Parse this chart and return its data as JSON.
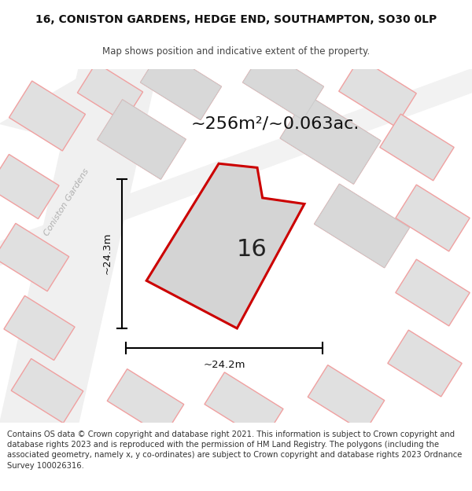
{
  "title": "16, CONISTON GARDENS, HEDGE END, SOUTHAMPTON, SO30 0LP",
  "subtitle": "Map shows position and indicative extent of the property.",
  "area_text": "~256m²/~0.063ac.",
  "width_text": "~24.2m",
  "height_text": "~24.3m",
  "label_16": "16",
  "street_label": "Coniston Gardens",
  "copyright_text": "Contains OS data © Crown copyright and database right 2021. This information is subject to Crown copyright and database rights 2023 and is reproduced with the permission of HM Land Registry. The polygons (including the associated geometry, namely x, y co-ordinates) are subject to Crown copyright and database rights 2023 Ordnance Survey 100026316.",
  "map_bg": "#ebebeb",
  "plot_fill": "#d4d4d4",
  "plot_edge": "#cc0000",
  "neighbor_fill": "#e0e0e0",
  "neighbor_edge": "#f0a0a0",
  "road_fill": "#f8f8f8",
  "title_fontsize": 10,
  "subtitle_fontsize": 8.5,
  "copyright_fontsize": 7.2,
  "area_fontsize": 16,
  "label_fontsize": 22,
  "measure_fontsize": 9.5,
  "street_fontsize": 8
}
